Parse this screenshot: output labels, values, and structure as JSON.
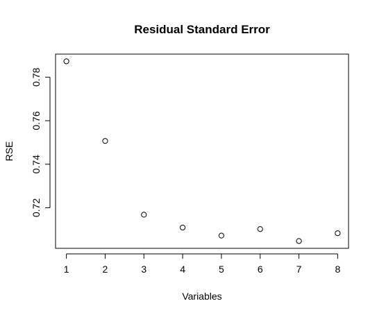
{
  "chart_data": {
    "type": "scatter",
    "title": "Residual Standard Error",
    "xlabel": "Variables",
    "ylabel": "RSE",
    "x": [
      1,
      2,
      3,
      4,
      5,
      6,
      7,
      8
    ],
    "y": [
      0.7873,
      0.7507,
      0.7168,
      0.7109,
      0.7072,
      0.7102,
      0.7047,
      0.7083
    ],
    "xticks": [
      1,
      2,
      3,
      4,
      5,
      6,
      7,
      8
    ],
    "yticks": [
      0.72,
      0.74,
      0.76,
      0.78
    ],
    "ytick_labels": [
      "0.72",
      "0.74",
      "0.76",
      "0.78"
    ],
    "xlim": [
      0.72,
      8.28
    ],
    "ylim": [
      0.70135,
      0.7906
    ],
    "grid": false,
    "legend": "none",
    "point_style": "open-circle",
    "colors": {
      "axis": "#000000",
      "point_stroke": "#000000",
      "background": "#ffffff"
    }
  }
}
